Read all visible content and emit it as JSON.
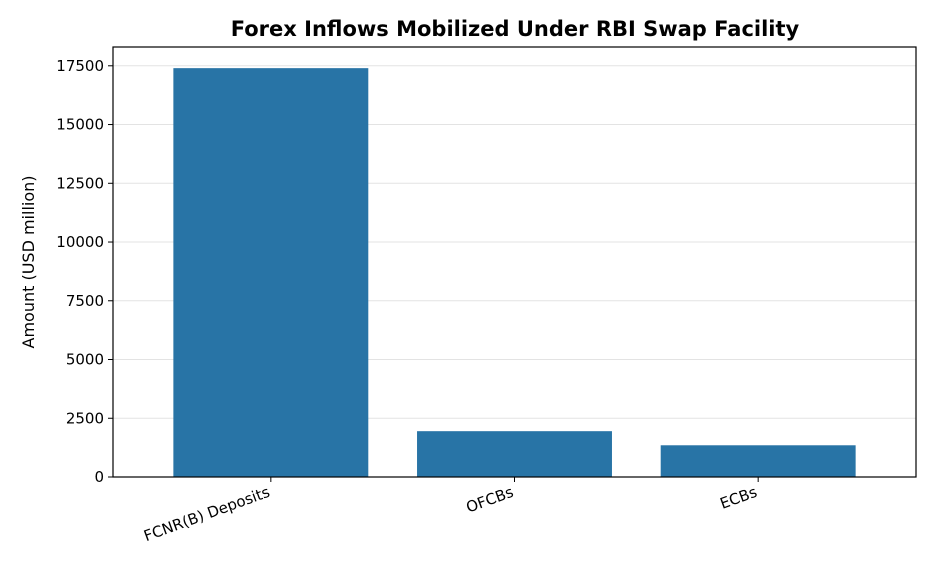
{
  "chart_data": {
    "type": "bar",
    "title": "Forex Inflows Mobilized Under RBI Swap Facility",
    "xlabel": "",
    "ylabel": "Amount (USD million)",
    "categories": [
      "FCNR(B) Deposits",
      "OFCBs",
      "ECBs"
    ],
    "values": [
      17400,
      1950,
      1350
    ],
    "ylim": [
      0,
      18300
    ],
    "yticks": [
      0,
      2500,
      5000,
      7500,
      10000,
      12500,
      15000,
      17500
    ],
    "ytick_labels": [
      "0",
      "2500",
      "5000",
      "7500",
      "10000",
      "12500",
      "15000",
      "17500"
    ],
    "bar_color": "#2874a6",
    "grid": "horizontal",
    "legend": "none"
  }
}
